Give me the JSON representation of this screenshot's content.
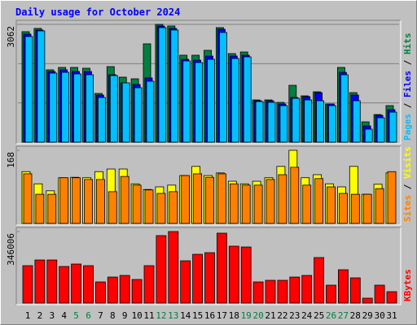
{
  "chart_data": [
    {
      "type": "bar",
      "title": "Daily usage for October 2024",
      "ylim": [
        0,
        3062
      ],
      "yticks": [
        3062
      ],
      "grid": true,
      "legend_separator": " / ",
      "series": [
        {
          "name": "Hits",
          "color": "#008040",
          "values": [
            2872,
            2957,
            1880,
            1943,
            1943,
            1922,
            1267,
            1964,
            1690,
            1647,
            2556,
            3062,
            3020,
            2260,
            2260,
            2387,
            2978,
            2302,
            2344,
            1098,
            1098,
            1035,
            1478,
            1204,
            1309,
            993,
            1943,
            1288,
            528,
            718,
            950
          ]
        },
        {
          "name": "Files",
          "color": "#0000ff",
          "values": [
            2809,
            2915,
            1837,
            1880,
            1837,
            1837,
            1225,
            1753,
            1542,
            1500,
            1669,
            3020,
            2957,
            2154,
            2133,
            2239,
            2936,
            2239,
            2260,
            1077,
            1077,
            993,
            1162,
            1183,
            1288,
            993,
            1816,
            1225,
            422,
            697,
            845
          ]
        },
        {
          "name": "Pages",
          "color": "#00c0ff",
          "values": [
            2746,
            2893,
            1795,
            1816,
            1774,
            1753,
            1162,
            1732,
            1542,
            1415,
            1584,
            2978,
            2915,
            2112,
            2070,
            2154,
            2851,
            2175,
            2218,
            1056,
            1035,
            950,
            1140,
            1098,
            1077,
            950,
            1753,
            1077,
            338,
            634,
            781
          ]
        }
      ]
    },
    {
      "type": "bar",
      "ylim": [
        0,
        168
      ],
      "yticks": [
        168
      ],
      "grid": false,
      "legend_separator": " / ",
      "series": [
        {
          "name": "Visits",
          "color": "#ffff00",
          "values": [
            119,
            91,
            75,
            105,
            106,
            105,
            119,
            125,
            125,
            91,
            78,
            84,
            88,
            110,
            131,
            110,
            116,
            97,
            91,
            97,
            105,
            131,
            168,
            105,
            112,
            91,
            84,
            131,
            67,
            90,
            116
          ]
        },
        {
          "name": "Sites",
          "color": "#ff8000",
          "values": [
            114,
            67,
            67,
            105,
            105,
            101,
            101,
            73,
            108,
            88,
            77,
            69,
            73,
            110,
            114,
            106,
            114,
            91,
            88,
            88,
            101,
            112,
            129,
            88,
            103,
            84,
            69,
            67,
            67,
            80,
            119
          ]
        }
      ]
    },
    {
      "type": "bar",
      "ylim": [
        0,
        346006
      ],
      "yticks": [
        346006
      ],
      "grid": false,
      "categories": [
        "1",
        "2",
        "3",
        "4",
        "5",
        "6",
        "7",
        "8",
        "9",
        "10",
        "11",
        "12",
        "13",
        "14",
        "15",
        "16",
        "17",
        "18",
        "19",
        "20",
        "21",
        "22",
        "23",
        "24",
        "25",
        "26",
        "27",
        "28",
        "29",
        "30",
        "31"
      ],
      "category_colors": [
        "#000000",
        "#000000",
        "#000000",
        "#000000",
        "#008040",
        "#008040",
        "#000000",
        "#000000",
        "#000000",
        "#000000",
        "#000000",
        "#008040",
        "#008040",
        "#000000",
        "#000000",
        "#000000",
        "#000000",
        "#000000",
        "#008040",
        "#008040",
        "#000000",
        "#000000",
        "#000000",
        "#000000",
        "#000000",
        "#008040",
        "#008040",
        "#000000",
        "#000000",
        "#000000",
        "#000000"
      ],
      "series": [
        {
          "name": "KBytes",
          "color": "#ff0000",
          "values": [
            180872,
            208396,
            208396,
            176940,
            188736,
            180872,
            102232,
            125824,
            133688,
            114028,
            180872,
            326356,
            346006,
            204464,
            235920,
            243784,
            338152,
            275240,
            271308,
            102232,
            110096,
            110096,
            125824,
            133688,
            220192,
            86504,
            161212,
            121892,
            23592,
            86504,
            55048
          ]
        }
      ]
    }
  ]
}
